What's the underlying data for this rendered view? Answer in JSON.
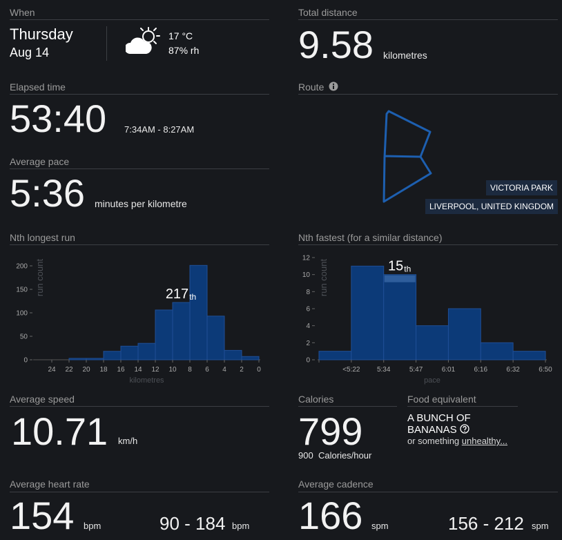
{
  "when": {
    "label": "When",
    "day": "Thursday",
    "date": "Aug 14",
    "temperature": "17 °C",
    "humidity": "87% rh"
  },
  "total_distance": {
    "label": "Total distance",
    "value": "9.58",
    "unit": "kilometres"
  },
  "elapsed_time": {
    "label": "Elapsed time",
    "value": "53:40",
    "range": "7:34AM - 8:27AM"
  },
  "route": {
    "label": "Route",
    "park": "VICTORIA PARK",
    "location": "LIVERPOOL, UNITED KINGDOM"
  },
  "average_pace": {
    "label": "Average pace",
    "value": "5:36",
    "unit": "minutes per kilometre"
  },
  "chart_data": [
    {
      "type": "histogram",
      "title": "Nth longest run",
      "ylabel": "run count",
      "xlabel": "kilometres",
      "bins": [
        0,
        2,
        4,
        6,
        8,
        10,
        12,
        14,
        16,
        18,
        20,
        22
      ],
      "values": [
        7,
        20,
        93,
        201,
        122,
        106,
        35,
        29,
        18,
        3,
        3
      ],
      "xlim": [
        26,
        0
      ],
      "xticks": [
        24,
        22,
        20,
        18,
        16,
        14,
        12,
        10,
        8,
        6,
        4,
        2,
        0
      ],
      "ylim": [
        0,
        200
      ],
      "yticks": [
        0,
        50,
        100,
        150,
        200
      ],
      "color": "#0c3a78",
      "highlight": 4,
      "rank": "217",
      "rank_suffix": "th"
    },
    {
      "type": "histogram",
      "title": "Nth fastest (for a similar distance)",
      "ylabel": "run count",
      "xlabel": "pace",
      "bins": [
        null,
        "<5:22",
        "5:34",
        "5:47",
        "6:01",
        "6:16",
        "6:32",
        "6:50"
      ],
      "values": [
        1,
        11,
        10,
        4,
        6,
        2,
        1
      ],
      "ylim": [
        0,
        12
      ],
      "yticks": [
        0,
        2,
        4,
        6,
        8,
        10,
        12
      ],
      "color": "#0c3a78",
      "highlight": 2,
      "highlight_color": "#2f5e9c",
      "rank": "15",
      "rank_suffix": "th"
    }
  ],
  "average_speed": {
    "label": "Average speed",
    "value": "10.71",
    "unit": "km/h"
  },
  "calories": {
    "label": "Calories",
    "value": "799",
    "rate": "900",
    "rate_unit": "Calories/hour"
  },
  "food_equivalent": {
    "label": "Food equivalent",
    "item": "A BUNCH OF BANANAS",
    "prefix": "or something",
    "link": "unhealthy..."
  },
  "heart_rate": {
    "label": "Average heart rate",
    "value": "154",
    "unit": "bpm",
    "range": "90 - 184",
    "range_unit": "bpm"
  },
  "cadence": {
    "label": "Average cadence",
    "value": "166",
    "unit": "spm",
    "range": "156 - 212",
    "range_unit": "spm"
  }
}
